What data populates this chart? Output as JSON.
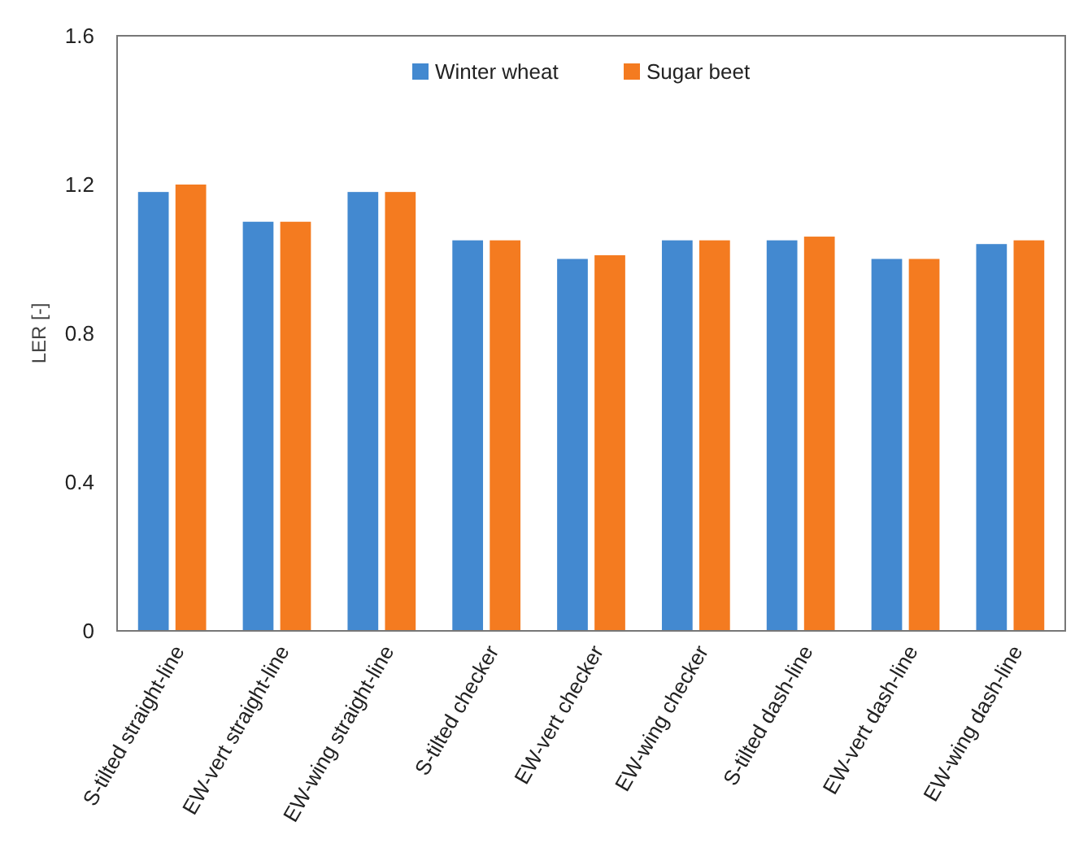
{
  "chart_data": {
    "type": "bar",
    "ylabel": "LER [-]",
    "categories": [
      "S-tilted straight-line",
      "EW-vert straight-line",
      "EW-wing straight-line",
      "S-tilted checker",
      "EW-vert checker",
      "EW-wing checker",
      "S-tilted dash-line",
      "EW-vert dash-line",
      "EW-wing dash-line"
    ],
    "series": [
      {
        "name": "Winter wheat",
        "color": "#4389d0",
        "values": [
          1.18,
          1.1,
          1.18,
          1.05,
          1.0,
          1.05,
          1.05,
          1.0,
          1.04
        ]
      },
      {
        "name": "Sugar beet",
        "color": "#f47b20",
        "values": [
          1.2,
          1.1,
          1.18,
          1.05,
          1.01,
          1.05,
          1.06,
          1.0,
          1.05
        ]
      }
    ],
    "ylim": [
      0,
      1.6
    ],
    "yticks": [
      0,
      0.4,
      0.8,
      1.2,
      1.6
    ],
    "legend": "top",
    "grid": false
  }
}
